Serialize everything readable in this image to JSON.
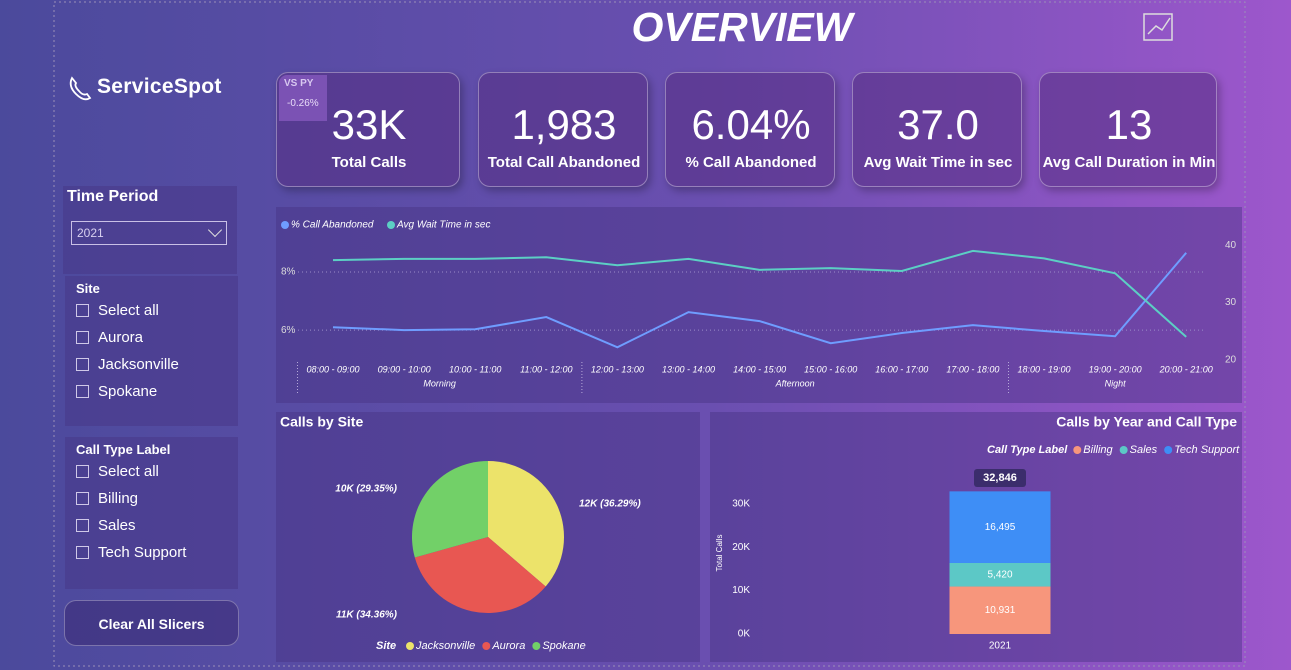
{
  "header": {
    "title": "OVERVIEW",
    "logo": "ServiceSpot"
  },
  "kpis": [
    {
      "value": "33K",
      "label": "Total Calls",
      "badge": "VS PY",
      "change": "-0.26%"
    },
    {
      "value": "1,983",
      "label": "Total Call Abandoned"
    },
    {
      "value": "6.04%",
      "label": "% Call Abandoned"
    },
    {
      "value": "37.0",
      "label": "Avg Wait Time in sec"
    },
    {
      "value": "13",
      "label": "Avg Call Duration in Min"
    }
  ],
  "slicers": {
    "time_period": {
      "title": "Time Period",
      "selected": "2021"
    },
    "site": {
      "title": "Site",
      "options": [
        "Select all",
        "Aurora",
        "Jacksonville",
        "Spokane"
      ]
    },
    "call_type": {
      "title": "Call Type Label",
      "options": [
        "Select all",
        "Billing",
        "Sales",
        "Tech Support"
      ]
    },
    "clear_button": "Clear All Slicers"
  },
  "chart_data": [
    {
      "type": "line",
      "categories": [
        "08:00 - 09:00",
        "09:00 - 10:00",
        "10:00 - 11:00",
        "11:00 - 12:00",
        "12:00 - 13:00",
        "13:00 - 14:00",
        "14:00 - 15:00",
        "15:00 - 16:00",
        "16:00 - 17:00",
        "17:00 - 18:00",
        "18:00 - 19:00",
        "19:00 - 20:00",
        "20:00 - 21:00"
      ],
      "group_labels": [
        "Morning",
        "Afternoon",
        "Night"
      ],
      "group_sizes": [
        4,
        6,
        3
      ],
      "series": [
        {
          "name": "% Call Abandoned",
          "color": "#6f9dff",
          "axis": "y",
          "values": [
            6.1,
            6.0,
            6.03,
            6.45,
            5.41,
            6.62,
            6.31,
            5.55,
            5.9,
            6.17,
            5.97,
            5.79,
            8.66
          ]
        },
        {
          "name": "Avg Wait Time in sec",
          "color": "#5ccfc4",
          "axis": "y2",
          "values": [
            37.4,
            37.6,
            37.6,
            37.9,
            36.5,
            37.6,
            35.7,
            36.0,
            35.5,
            39.0,
            37.7,
            35.1,
            24.0
          ]
        }
      ],
      "ylim": [
        4.8,
        9.1
      ],
      "yticks": [
        {
          "value": 6,
          "label": "6%"
        },
        {
          "value": 8,
          "label": "8%"
        }
      ],
      "y2lim": [
        19.1,
        40.9
      ],
      "y2ticks": [
        20,
        30,
        40
      ],
      "grid": true
    },
    {
      "type": "pie",
      "title": "Calls by Site",
      "legend_title": "Site",
      "categories": [
        "Jacksonville",
        "Aurora",
        "Spokane"
      ],
      "values": [
        36.29,
        34.36,
        29.35
      ],
      "value_labels": [
        "12K (36.29%)",
        "11K (34.36%)",
        "10K (29.35%)"
      ],
      "colors": [
        "#ece36a",
        "#e85752",
        "#72d068"
      ]
    },
    {
      "type": "bar",
      "stacked": true,
      "title": "Calls by Year and Call Type",
      "legend_title": "Call Type Label",
      "ylabel": "Total Calls",
      "categories": [
        "2021"
      ],
      "series": [
        {
          "name": "Billing",
          "color": "#f7967c",
          "values": [
            10931
          ],
          "value_labels": [
            "10,931"
          ]
        },
        {
          "name": "Sales",
          "color": "#5cc8c6",
          "values": [
            5420
          ],
          "value_labels": [
            "5,420"
          ]
        },
        {
          "name": "Tech Support",
          "color": "#3e8ef6",
          "values": [
            16495
          ],
          "value_labels": [
            "16,495"
          ]
        }
      ],
      "totals": [
        32846
      ],
      "total_labels": [
        "32,846"
      ],
      "ylim": [
        0,
        35000
      ],
      "yticks": [
        {
          "value": 0,
          "label": "0K"
        },
        {
          "value": 10000,
          "label": "10K"
        },
        {
          "value": 20000,
          "label": "20K"
        },
        {
          "value": 30000,
          "label": "30K"
        }
      ]
    }
  ]
}
